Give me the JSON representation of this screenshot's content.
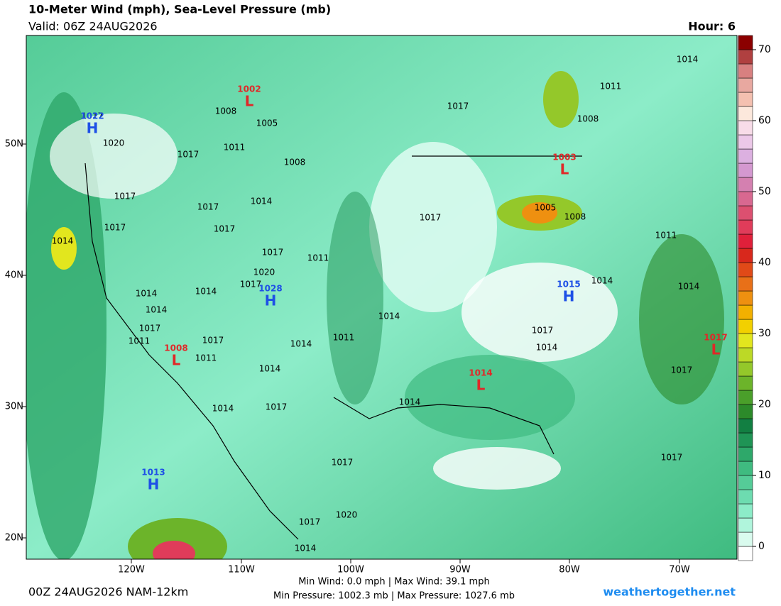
{
  "header": {
    "title": "10-Meter Wind (mph), Sea-Level Pressure (mb)",
    "valid": "Valid: 06Z 24AUG2026",
    "hour": "Hour: 6"
  },
  "map": {
    "lat_labels": [
      "50N",
      "40N",
      "30N",
      "20N"
    ],
    "lon_labels": [
      "120W",
      "110W",
      "100W",
      "90W",
      "80W",
      "70W"
    ],
    "pressure_centers": [
      {
        "symbol": "H",
        "label": "1022"
      },
      {
        "symbol": "L",
        "label": "1002"
      },
      {
        "symbol": "L",
        "label": "1003"
      },
      {
        "symbol": "H",
        "label": "1028"
      },
      {
        "symbol": "H",
        "label": "1015"
      },
      {
        "symbol": "L",
        "label": "1008"
      },
      {
        "symbol": "L",
        "label": "1014"
      },
      {
        "symbol": "L",
        "label": "1017"
      },
      {
        "symbol": "H",
        "label": "1013"
      }
    ],
    "isobar_labels": [
      "1014",
      "1011",
      "1017",
      "1008",
      "1005",
      "1008",
      "1017",
      "1020",
      "1011",
      "1017",
      "1008",
      "1017",
      "1017",
      "1014",
      "1017",
      "1017",
      "1005",
      "1008",
      "1017",
      "1014",
      "1017",
      "1011",
      "1011",
      "1020",
      "1017",
      "1014",
      "1014",
      "1014",
      "1014",
      "1014",
      "1014",
      "1017",
      "1011",
      "1017",
      "1011",
      "1014",
      "1011",
      "1017",
      "1014",
      "1014",
      "1017",
      "1014",
      "1017",
      "1014",
      "1017",
      "1017",
      "1020",
      "1017",
      "1014"
    ]
  },
  "colorbar": {
    "ylim": [
      -2,
      72
    ],
    "ticks": [
      0,
      10,
      20,
      30,
      40,
      50,
      60,
      70
    ],
    "colors": [
      "#ffffff",
      "#d9fbee",
      "#b0f5dc",
      "#8cecc8",
      "#6ddcb0",
      "#55cc98",
      "#3fbb80",
      "#2ea86a",
      "#1f9455",
      "#127f42",
      "#2c8a2a",
      "#4a9f2a",
      "#6cb42a",
      "#94c82a",
      "#bcd926",
      "#e2e61e",
      "#f2d000",
      "#f2b000",
      "#ee9010",
      "#e87018",
      "#e04a18",
      "#d8281c",
      "#e0203a",
      "#e03c5a",
      "#dc5070",
      "#d86890",
      "#d480b0",
      "#d498d0",
      "#dcb0e0",
      "#ecc8e8",
      "#f8dce8",
      "#fce8dc",
      "#f4c0b0",
      "#e8a8a0",
      "#d88080",
      "#b04040",
      "#8b0000"
    ]
  },
  "footer": {
    "run": "00Z 24AUG2026 NAM-12km",
    "wind": "Min Wind:  0.0 mph | Max Wind:  39.1 mph",
    "pressure": "Min Pressure: 1002.3 mb | Max Pressure: 1027.6 mb",
    "site": "weathertogether.net"
  }
}
